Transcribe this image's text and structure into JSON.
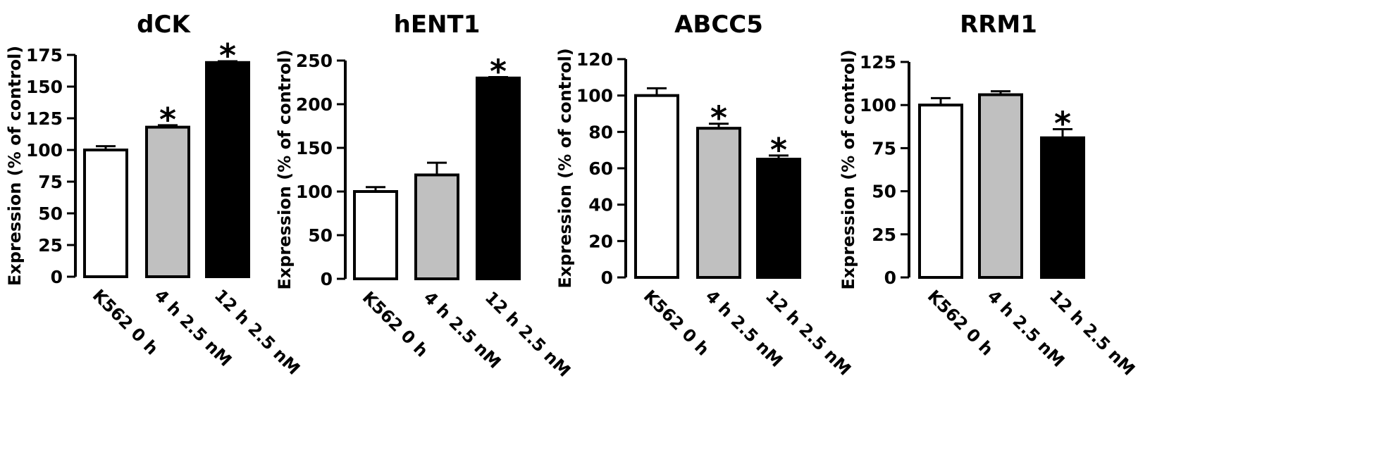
{
  "chart_data": [
    {
      "type": "bar",
      "title": "dCK",
      "ylabel": "Expression (% of control)",
      "categories": [
        "K562 0 h",
        "4 h 2.5 nM",
        "12 h 2.5 nM"
      ],
      "values": [
        100,
        118,
        169
      ],
      "errors": [
        3,
        1.5,
        1
      ],
      "significant": [
        false,
        true,
        true
      ],
      "ylim": [
        0,
        175
      ],
      "yticks": [
        0,
        25,
        50,
        75,
        100,
        125,
        150,
        175
      ],
      "bar_colors": [
        "#ffffff",
        "#c0c0c0",
        "#000000"
      ],
      "annotation": "*"
    },
    {
      "type": "bar",
      "title": "hENT1",
      "ylabel": "Expression (% of control)",
      "categories": [
        "K562 0 h",
        "4 h 2.5 nM",
        "12 h 2.5 nM"
      ],
      "values": [
        100,
        119,
        230
      ],
      "errors": [
        5,
        14,
        1
      ],
      "significant": [
        false,
        false,
        true
      ],
      "ylim": [
        0,
        250
      ],
      "yticks": [
        0,
        50,
        100,
        150,
        200,
        250
      ],
      "bar_colors": [
        "#ffffff",
        "#c0c0c0",
        "#000000"
      ],
      "annotation": "*"
    },
    {
      "type": "bar",
      "title": "ABCC5",
      "ylabel": "Expression (% of control)",
      "categories": [
        "K562 0 h",
        "4 h 2.5 nM",
        "12 h 2.5 nM"
      ],
      "values": [
        100,
        82,
        65
      ],
      "errors": [
        4,
        2.5,
        2
      ],
      "significant": [
        false,
        true,
        true
      ],
      "ylim": [
        0,
        120
      ],
      "yticks": [
        0,
        20,
        40,
        60,
        80,
        100,
        120
      ],
      "bar_colors": [
        "#ffffff",
        "#c0c0c0",
        "#000000"
      ],
      "annotation": "*"
    },
    {
      "type": "bar",
      "title": "RRM1",
      "ylabel": "Expression (% of control)",
      "categories": [
        "K562 0 h",
        "4 h 2.5 nM",
        "12 h 2.5 nM"
      ],
      "values": [
        100,
        106,
        81
      ],
      "errors": [
        4,
        2,
        5
      ],
      "significant": [
        false,
        false,
        true
      ],
      "ylim": [
        0,
        125
      ],
      "yticks": [
        0,
        25,
        50,
        75,
        100,
        125
      ],
      "bar_colors": [
        "#ffffff",
        "#c0c0c0",
        "#000000"
      ],
      "annotation": "*"
    }
  ]
}
